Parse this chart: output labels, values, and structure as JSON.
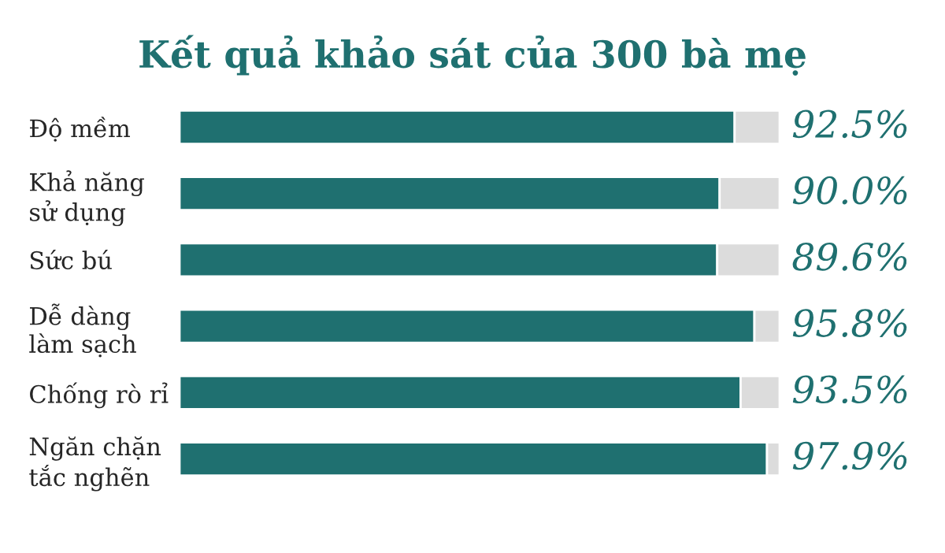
{
  "chart_data": {
    "type": "bar",
    "title": "Kết quả khảo sát của 300 bà mẹ",
    "orientation": "horizontal",
    "stacked": true,
    "categories": [
      "Độ mềm",
      "Khả năng\nsử dụng",
      "Sức bú",
      "Dễ dàng\nlàm sạch",
      "Chống rò rỉ",
      "Ngăn chặn\ntắc nghẽn"
    ],
    "series": [
      {
        "color": "#1f7070",
        "values": [
          92.5,
          90.0,
          89.6,
          95.8,
          93.5,
          97.9
        ],
        "value_labels": [
          "92.5%",
          "90.0%",
          "89.6%",
          "95.8%",
          "93.5%",
          "97.9%"
        ]
      },
      {
        "color": "#dcdcdc",
        "values": [
          7.5,
          10.0,
          10.4,
          4.2,
          6.5,
          2.1
        ]
      }
    ],
    "legend": false
  }
}
